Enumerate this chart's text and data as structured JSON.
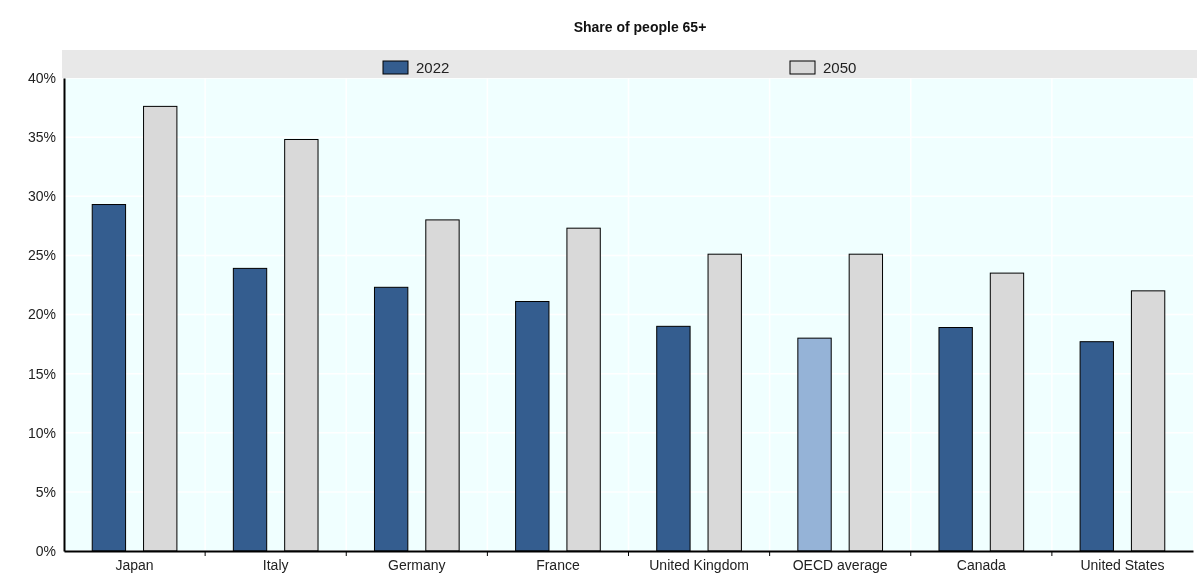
{
  "chart_data": {
    "type": "bar",
    "title": "Share of people 65+",
    "categories": [
      "Japan",
      "Italy",
      "Germany",
      "France",
      "United Kingdom",
      "OECD average",
      "Canada",
      "United States"
    ],
    "series": [
      {
        "name": "2022",
        "color": "#345d8f",
        "colors": [
          "#345d8f",
          "#345d8f",
          "#345d8f",
          "#345d8f",
          "#345d8f",
          "#95b3d7",
          "#345d8f",
          "#345d8f"
        ],
        "values": [
          29.3,
          23.9,
          22.3,
          21.1,
          19.0,
          18.0,
          18.9,
          17.7
        ]
      },
      {
        "name": "2050",
        "color": "#d9d9d9",
        "values": [
          37.6,
          34.8,
          28.0,
          27.3,
          25.1,
          25.1,
          23.5,
          22.0
        ]
      }
    ],
    "ylim": [
      0,
      40
    ],
    "yticks": [
      {
        "value": 0,
        "label": "0%"
      },
      {
        "value": 5,
        "label": "5%"
      },
      {
        "value": 10,
        "label": "10%"
      },
      {
        "value": 15,
        "label": "15%"
      },
      {
        "value": 20,
        "label": "20%"
      },
      {
        "value": 25,
        "label": "25%"
      },
      {
        "value": 30,
        "label": "30%"
      },
      {
        "value": 35,
        "label": "35%"
      },
      {
        "value": 40,
        "label": "40%"
      }
    ],
    "grid": true,
    "legend": "top"
  }
}
